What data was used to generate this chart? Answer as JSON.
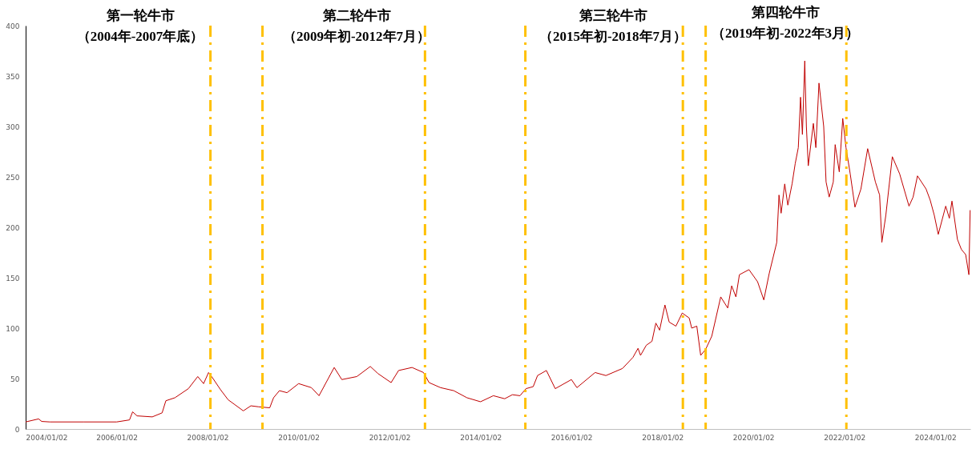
{
  "chart_data": {
    "type": "line",
    "annotations": [
      "第一轮牛市",
      "（2004年-2007年底）",
      "第二轮牛市",
      "（2009年初-2012年7月）",
      "第三轮牛市",
      "（2015年初-2018年7月）",
      "第四轮牛市",
      "（2019年初-2022年3月）"
    ],
    "x": [
      "2004-01-02",
      "2004-04-15",
      "2004-05-10",
      "2004-07-15",
      "2005-04-15",
      "2006-01-02",
      "2006-04-15",
      "2006-05-10",
      "2006-06-15",
      "2006-10-15",
      "2007-01-02",
      "2007-02-01",
      "2007-04-15",
      "2007-08-01",
      "2007-10-15",
      "2007-12-01",
      "2008-01-10",
      "2008-02-15",
      "2008-04-15",
      "2008-06-15",
      "2008-10-15",
      "2008-12-15",
      "2009-02-15",
      "2009-05-15",
      "2009-06-15",
      "2009-08-01",
      "2009-10-01",
      "2010-01-02",
      "2010-04-15",
      "2010-06-15",
      "2010-10-15",
      "2010-12-15",
      "2011-04-15",
      "2011-08-01",
      "2011-10-01",
      "2012-01-15",
      "2012-03-15",
      "2012-07-01",
      "2012-10-01",
      "2012-11-15",
      "2013-02-15",
      "2013-06-01",
      "2013-09-15",
      "2014-01-02",
      "2014-04-15",
      "2014-07-15",
      "2014-09-15",
      "2014-11-15",
      "2015-01-02",
      "2015-03-01",
      "2015-04-05",
      "2015-06-15",
      "2015-08-25",
      "2016-01-02",
      "2016-02-15",
      "2016-07-10",
      "2016-10-05",
      "2017-02-15",
      "2017-05-10",
      "2017-06-20",
      "2017-07-10",
      "2017-08-25",
      "2017-10-10",
      "2017-11-10",
      "2017-12-10",
      "2018-01-22",
      "2018-02-25",
      "2018-04-20",
      "2018-06-10",
      "2018-08-05",
      "2018-08-25",
      "2018-10-05",
      "2018-11-05",
      "2018-12-15",
      "2019-02-02",
      "2019-04-15",
      "2019-06-10",
      "2019-07-12",
      "2019-08-15",
      "2019-09-12",
      "2019-11-28",
      "2020-02-05",
      "2020-03-26",
      "2020-05-08",
      "2020-07-08",
      "2020-07-26",
      "2020-08-12",
      "2020-09-10",
      "2020-10-05",
      "2020-11-08",
      "2020-12-03",
      "2020-12-28",
      "2021-01-15",
      "2021-01-30",
      "2021-02-18",
      "2021-03-03",
      "2021-03-18",
      "2021-04-28",
      "2021-05-18",
      "2021-06-12",
      "2021-07-20",
      "2021-08-08",
      "2021-09-02",
      "2021-10-05",
      "2021-10-20",
      "2021-11-22",
      "2021-12-20",
      "2022-01-15",
      "2022-02-18",
      "2022-03-28",
      "2022-05-15",
      "2022-07-08",
      "2022-09-08",
      "2022-10-12",
      "2022-10-30",
      "2022-12-01",
      "2023-01-22",
      "2023-03-22",
      "2023-06-05",
      "2023-07-08",
      "2023-08-12",
      "2023-10-20",
      "2023-11-22",
      "2023-12-25",
      "2024-01-26",
      "2024-03-26",
      "2024-04-24",
      "2024-05-15",
      "2024-06-28",
      "2024-07-30",
      "2024-09-02",
      "2024-09-28",
      "2024-10-08"
    ],
    "series": [
      {
        "color": "#c00000",
        "values": [
          7,
          10,
          7.5,
          7,
          7,
          7,
          9,
          17,
          13,
          12,
          16,
          28,
          31,
          40,
          52,
          45,
          56,
          50,
          39,
          29,
          18,
          23,
          22,
          21,
          31,
          38,
          36,
          45,
          41,
          33,
          61,
          49,
          52,
          62,
          55,
          46,
          58,
          61,
          56,
          46,
          41,
          38,
          31,
          27,
          33,
          30,
          34,
          33,
          40,
          42,
          53,
          58,
          40,
          49,
          41,
          56,
          53,
          60,
          71,
          80,
          73,
          83,
          87,
          105,
          98,
          123,
          106,
          102,
          115,
          110,
          100,
          102,
          73,
          79,
          92,
          131,
          120,
          142,
          131,
          153,
          158,
          146,
          128,
          154,
          185,
          232,
          214,
          243,
          222,
          243,
          263,
          279,
          329,
          292,
          365,
          300,
          261,
          303,
          279,
          343,
          300,
          245,
          230,
          245,
          282,
          255,
          308,
          279,
          253,
          220,
          238,
          278,
          245,
          232,
          185,
          212,
          270,
          253,
          221,
          230,
          251,
          238,
          227,
          212,
          193,
          221,
          209,
          226,
          188,
          178,
          173,
          153,
          217
        ]
      }
    ],
    "xlim": [
      "2004-01-02",
      "2024-10-10"
    ],
    "xticks": [
      {
        "value": "2004-01-02",
        "label": "2004/01/02"
      },
      {
        "value": "2006-01-02",
        "label": "2006/01/02"
      },
      {
        "value": "2008-01-02",
        "label": "2008/01/02"
      },
      {
        "value": "2010-01-02",
        "label": "2010/01/02"
      },
      {
        "value": "2012-01-02",
        "label": "2012/01/02"
      },
      {
        "value": "2014-01-02",
        "label": "2014/01/02"
      },
      {
        "value": "2016-01-02",
        "label": "2016/01/02"
      },
      {
        "value": "2018-01-02",
        "label": "2018/01/02"
      },
      {
        "value": "2020-01-02",
        "label": "2020/01/02"
      },
      {
        "value": "2022-01-02",
        "label": "2022/01/02"
      },
      {
        "value": "2024-01-02",
        "label": "2024/01/02"
      }
    ],
    "ylim": [
      0,
      400
    ],
    "yticks": [
      0,
      50,
      100,
      150,
      200,
      250,
      300,
      350,
      400
    ],
    "grid": false,
    "ref_lines": [
      {
        "axis": "x",
        "value": "2008-01-25",
        "color": "#ffc000",
        "line_style": "dashed"
      },
      {
        "axis": "x",
        "value": "2009-03-18",
        "color": "#ffc000",
        "line_style": "dashed"
      },
      {
        "axis": "x",
        "value": "2012-10-13",
        "color": "#ffc000",
        "line_style": "dashed"
      },
      {
        "axis": "x",
        "value": "2014-12-28",
        "color": "#ffc000",
        "line_style": "dashed"
      },
      {
        "axis": "x",
        "value": "2018-06-15",
        "color": "#ffc000",
        "line_style": "dashed"
      },
      {
        "axis": "x",
        "value": "2018-12-15",
        "color": "#ffc000",
        "line_style": "dashed"
      },
      {
        "axis": "x",
        "value": "2022-01-18",
        "color": "#ffc000",
        "line_style": "dashed"
      }
    ]
  }
}
